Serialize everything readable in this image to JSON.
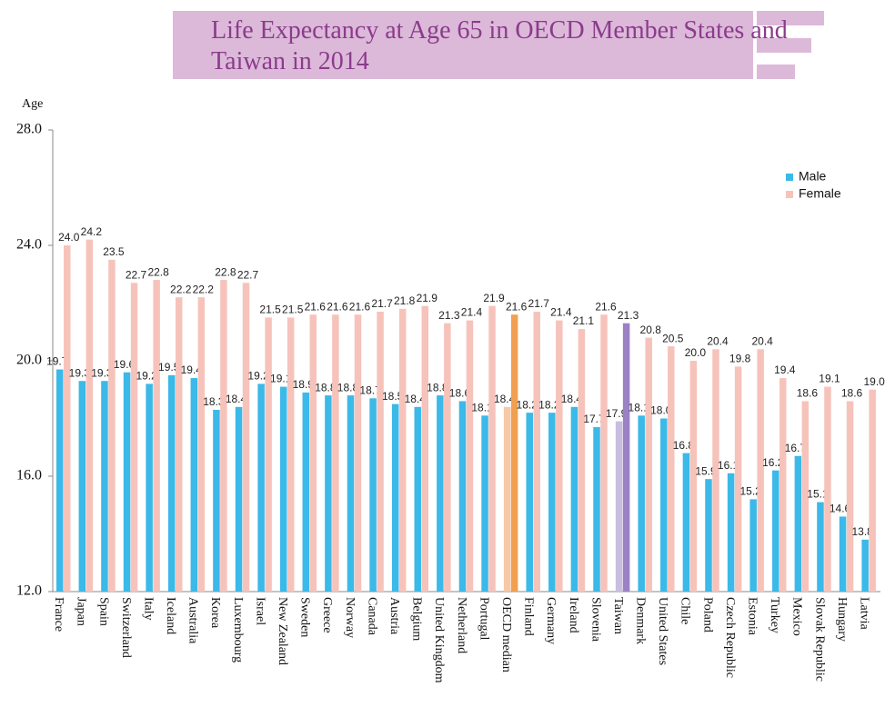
{
  "chart_data": {
    "type": "bar",
    "title": "Life Expectancy at Age 65 in OECD Member States and Taiwan in 2014",
    "ylabel": "Age",
    "categories": [
      "France",
      "Japan",
      "Spain",
      "Switzerland",
      "Italy",
      "Iceland",
      "Australia",
      "Korea",
      "Luxembourg",
      "Israel",
      "New Zealand",
      "Sweden",
      "Greece",
      "Norway",
      "Canada",
      "Austria",
      "Belgium",
      "United Kingdom",
      "Netherland",
      "Portugal",
      "OECD median",
      "Finland",
      "Germany",
      "Ireland",
      "Slovenia",
      "Taiwan",
      "Denmark",
      "United States",
      "Chile",
      "Poland",
      "Czech Republic",
      "Estonia",
      "Turkey",
      "Mexico",
      "Slovak Republic",
      "Hungary",
      "Latvia"
    ],
    "series": [
      {
        "name": "Male",
        "color": "#3bb9e8",
        "values": [
          19.7,
          19.3,
          19.3,
          19.6,
          19.2,
          19.5,
          19.4,
          18.3,
          18.4,
          19.2,
          19.1,
          18.9,
          18.8,
          18.8,
          18.7,
          18.5,
          18.4,
          18.8,
          18.6,
          18.1,
          18.4,
          18.2,
          18.2,
          18.4,
          17.7,
          17.9,
          18.1,
          18.0,
          16.8,
          15.9,
          16.1,
          15.2,
          16.2,
          16.7,
          15.1,
          14.6,
          13.8
        ],
        "value_labels": [
          "19.7",
          "19.3",
          "19.3",
          "19.6",
          "19.2",
          "19.5",
          "19.4",
          "18.3",
          "18.4",
          "19.2",
          "19.1",
          "18.9",
          "18.8",
          "18.8",
          "18.7",
          "18.5",
          "18.4",
          "18.8",
          "18.6",
          "18.1",
          "18.4",
          "18.2",
          "18.2",
          "18.4",
          "17.7",
          "17.9",
          "18.1",
          "18.0",
          "16.8",
          "15.9",
          "16.1",
          "15.2",
          "16.2",
          "16.7",
          "15.1",
          "14.6",
          "13.8"
        ]
      },
      {
        "name": "Female",
        "color": "#f6c3bb",
        "values": [
          24.0,
          24.2,
          23.5,
          22.7,
          22.8,
          22.2,
          22.2,
          22.8,
          22.7,
          21.5,
          21.5,
          21.6,
          21.6,
          21.6,
          21.7,
          21.8,
          21.9,
          21.3,
          21.4,
          21.9,
          21.6,
          21.7,
          21.4,
          21.1,
          21.6,
          21.3,
          20.8,
          20.5,
          20.0,
          20.4,
          19.8,
          20.4,
          19.4,
          18.6,
          19.1,
          18.6,
          19.0
        ],
        "value_labels": [
          "24.0",
          "24.2",
          "23.5",
          "22.7",
          "22.8",
          "22.2",
          "22.2",
          "22.8",
          "22.7",
          "21.5",
          "21.5",
          "21.6",
          "21.6",
          "21.6",
          "21.7",
          "21.8",
          "21.9",
          "21.3",
          "21.4",
          "21.9",
          "21.6",
          "21.7",
          "21.4",
          "21.1",
          "21.6",
          "21.3",
          "20.8",
          "20.5",
          "20.0",
          "20.4",
          "19.8",
          "20.4",
          "19.4",
          "18.6",
          "19.1",
          "18.6",
          "19.0"
        ]
      }
    ],
    "highlights": [
      {
        "category": "OECD median",
        "colors": [
          "#f7c9a6",
          "#f0a050"
        ]
      },
      {
        "category": "Taiwan",
        "colors": [
          "#c9bde0",
          "#9a82c4"
        ]
      }
    ],
    "ylim": [
      12,
      28
    ],
    "yticks": [
      {
        "value": 12,
        "label": "12.0"
      },
      {
        "value": 16,
        "label": "16.0"
      },
      {
        "value": 20,
        "label": "20.0"
      },
      {
        "value": 24,
        "label": "24.0"
      },
      {
        "value": 28,
        "label": "28.0"
      }
    ],
    "legend": "upper right"
  }
}
